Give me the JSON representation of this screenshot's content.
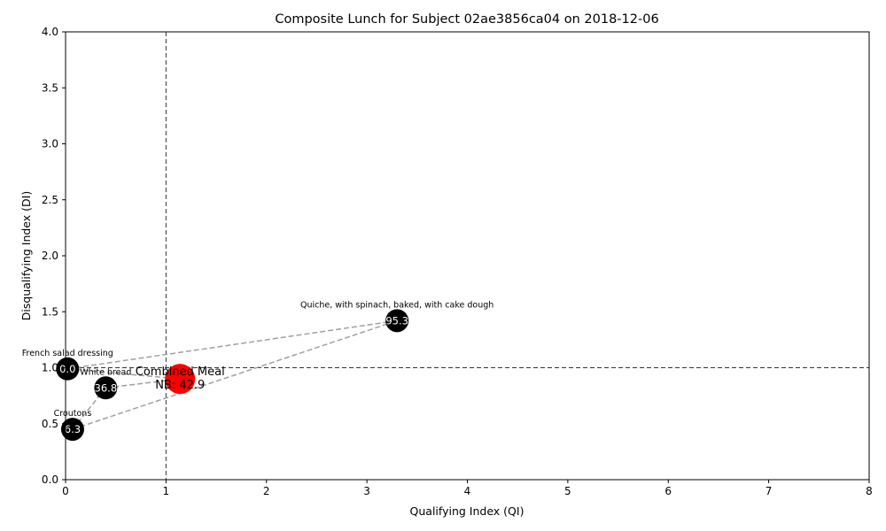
{
  "chart_data": {
    "type": "scatter",
    "title": "Composite Lunch for Subject 02ae3856ca04 on 2018-12-06",
    "xlabel": "Qualifying Index (QI)",
    "ylabel": "Disqualifying Index (DI)",
    "xlim": [
      0,
      8
    ],
    "ylim": [
      0,
      4
    ],
    "xticks": [
      "0",
      "1",
      "2",
      "3",
      "4",
      "5",
      "6",
      "7",
      "8"
    ],
    "yticks": [
      "0.0",
      "0.5",
      "1.0",
      "1.5",
      "2.0",
      "2.5",
      "3.0",
      "3.5",
      "4.0"
    ],
    "reference_lines": {
      "x": 1,
      "y": 1
    },
    "points": [
      {
        "name": "French salad dressing",
        "x": 0.02,
        "y": 0.99,
        "label": "0.0",
        "color": "#000000"
      },
      {
        "name": "White bread",
        "x": 0.4,
        "y": 0.82,
        "label": "36.8",
        "color": "#000000"
      },
      {
        "name": "Croutons",
        "x": 0.07,
        "y": 0.45,
        "label": "6.3",
        "color": "#000000"
      },
      {
        "name": "Quiche, with spinach, baked, with cake dough",
        "x": 3.3,
        "y": 1.42,
        "label": "95.3",
        "color": "#000000"
      }
    ],
    "combined": {
      "name": "Combined Meal",
      "label": "NB: 42.9",
      "x": 1.14,
      "y": 0.9,
      "color": "#ff0000"
    },
    "connector_color": "#a0a0a0"
  }
}
